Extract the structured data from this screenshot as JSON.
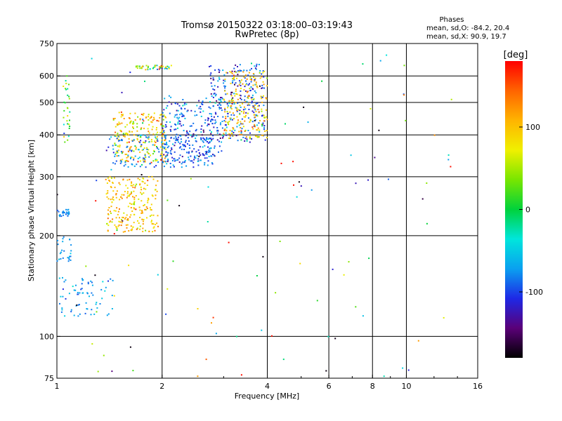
{
  "chart_data": {
    "type": "scatter",
    "title": "Tromsø 20150322 03:18:00–03:19:43",
    "subtitle": "RwPretec (8p)",
    "xlabel": "Frequency [MHz]",
    "ylabel": "Stationary phase Virtual Height [km]",
    "x_scale": "log",
    "y_scale": "log",
    "xlim": [
      1,
      16
    ],
    "ylim": [
      75,
      750
    ],
    "x_ticks": [
      1,
      2,
      4,
      6,
      8,
      10,
      16
    ],
    "x_tick_labels": [
      "1",
      "2",
      "4",
      "6",
      "8",
      "10",
      "16"
    ],
    "y_ticks": [
      75,
      100,
      200,
      300,
      400,
      500,
      600,
      750
    ],
    "y_tick_labels": [
      "75",
      "100",
      "200",
      "300",
      "400",
      "500",
      "600",
      "750"
    ],
    "x_grid": [
      2,
      4,
      6,
      8,
      10
    ],
    "y_grid": [
      100,
      200,
      300,
      400,
      500,
      600
    ],
    "grid": true,
    "legend": {
      "title": "Phases",
      "lines": [
        "mean, sd,O: -84.2, 20.4",
        "mean, sd,X:  90.9, 19.7"
      ],
      "placement": "top-right"
    },
    "colorbar": {
      "unit_label": "[deg]",
      "range": [
        -180,
        180
      ],
      "ticks": [
        100,
        0,
        -100
      ],
      "tick_labels": [
        "100",
        "0",
        "-100"
      ],
      "colors": [
        "#000000",
        "#5a0078",
        "#1e28e6",
        "#0aa0f0",
        "#00e6dc",
        "#00d23c",
        "#78e600",
        "#f0f000",
        "#ffb400",
        "#ff6400",
        "#ff0000"
      ]
    },
    "clusters": [
      {
        "f_min": 1.0,
        "f_max": 1.09,
        "h_min": 228,
        "h_max": 240,
        "n": 25,
        "phase": -80,
        "phase_sd": 10
      },
      {
        "f_min": 1.0,
        "f_max": 1.1,
        "h_min": 165,
        "h_max": 200,
        "n": 25,
        "phase": -75,
        "phase_sd": 10
      },
      {
        "f_min": 1.01,
        "f_max": 1.45,
        "h_min": 115,
        "h_max": 150,
        "n": 70,
        "phase": -70,
        "phase_sd": 15
      },
      {
        "f_min": 1.04,
        "f_max": 1.09,
        "h_min": 380,
        "h_max": 600,
        "n": 30,
        "phase": 20,
        "phase_sd": 40
      },
      {
        "f_min": 1.38,
        "f_max": 1.95,
        "h_min": 205,
        "h_max": 300,
        "n": 230,
        "phase": 95,
        "phase_sd": 25
      },
      {
        "f_min": 1.45,
        "f_max": 2.05,
        "h_min": 330,
        "h_max": 470,
        "n": 230,
        "phase": 90,
        "phase_sd": 35
      },
      {
        "f_min": 1.4,
        "f_max": 2.8,
        "h_min": 320,
        "h_max": 400,
        "n": 170,
        "phase": -82,
        "phase_sd": 20
      },
      {
        "f_min": 2.0,
        "f_max": 3.0,
        "h_min": 330,
        "h_max": 520,
        "n": 260,
        "phase": -95,
        "phase_sd": 25
      },
      {
        "f_min": 2.7,
        "f_max": 3.95,
        "h_min": 380,
        "h_max": 650,
        "n": 260,
        "phase": -95,
        "phase_sd": 30
      },
      {
        "f_min": 3.0,
        "f_max": 4.0,
        "h_min": 390,
        "h_max": 620,
        "n": 190,
        "phase": 95,
        "phase_sd": 25
      },
      {
        "f_min": 1.68,
        "f_max": 2.15,
        "h_min": 625,
        "h_max": 645,
        "n": 45,
        "phase": 20,
        "phase_sd": 80
      },
      {
        "f_min": 1.0,
        "f_max": 14.0,
        "h_min": 75,
        "h_max": 700,
        "n": 110,
        "phase": 0,
        "phase_sd": 110
      }
    ]
  }
}
